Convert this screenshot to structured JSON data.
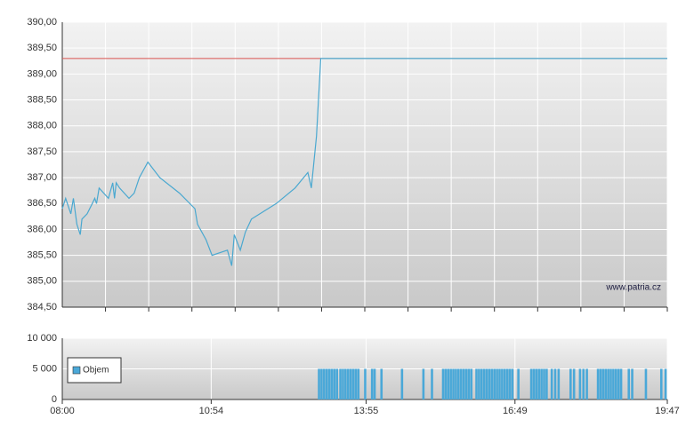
{
  "chart_data": [
    {
      "type": "line",
      "x": [
        "08:00",
        "08:04",
        "08:10",
        "08:13",
        "08:17",
        "08:21",
        "08:23",
        "08:29",
        "08:35",
        "08:38",
        "08:40",
        "08:43",
        "08:54",
        "08:59",
        "09:01",
        "09:03",
        "09:07",
        "09:18",
        "09:24",
        "09:30",
        "09:40",
        "09:54",
        "10:17",
        "10:35",
        "10:38",
        "10:48",
        "10:55",
        "11:13",
        "11:18",
        "11:21",
        "11:28",
        "11:34",
        "11:41",
        "12:10",
        "12:32",
        "12:47",
        "12:51",
        "12:57",
        "13:02",
        "19:47"
      ],
      "values": [
        386.4,
        386.6,
        386.3,
        386.6,
        386.1,
        385.9,
        386.2,
        386.3,
        386.5,
        386.6,
        386.5,
        386.8,
        386.6,
        386.9,
        386.6,
        386.9,
        386.8,
        386.6,
        386.7,
        387.0,
        387.3,
        387.0,
        386.7,
        386.4,
        386.1,
        385.8,
        385.5,
        385.6,
        385.3,
        385.9,
        385.6,
        385.95,
        386.2,
        386.5,
        386.8,
        387.1,
        386.8,
        387.8,
        389.3,
        389.3
      ],
      "color": "#4aa8d0",
      "reference_line": {
        "value": 389.3,
        "color": "#d9534f"
      },
      "xlim": [
        "08:00",
        "19:47"
      ],
      "ylim": [
        384.5,
        390
      ],
      "yticks": [
        {
          "value": 384.5,
          "label": "384,50"
        },
        {
          "value": 385,
          "label": "385,00"
        },
        {
          "value": 385.5,
          "label": "385,50"
        },
        {
          "value": 386,
          "label": "386,00"
        },
        {
          "value": 386.5,
          "label": "386,50"
        },
        {
          "value": 387,
          "label": "387,00"
        },
        {
          "value": 387.5,
          "label": "387,50"
        },
        {
          "value": 388,
          "label": "388,00"
        },
        {
          "value": 388.5,
          "label": "388,50"
        },
        {
          "value": 389,
          "label": "389,00"
        },
        {
          "value": 389.5,
          "label": "389,50"
        },
        {
          "value": 390,
          "label": "390,00"
        }
      ],
      "annotation": "www.patria.cz",
      "grid": true
    },
    {
      "type": "bar",
      "x": [
        "13:00",
        "13:03",
        "13:06",
        "13:09",
        "13:12",
        "13:15",
        "13:18",
        "13:21",
        "13:25",
        "13:28",
        "13:31",
        "13:34",
        "13:37",
        "13:40",
        "13:43",
        "13:46",
        "13:54",
        "14:02",
        "14:05",
        "14:13",
        "14:37",
        "15:02",
        "15:12",
        "15:25",
        "15:28",
        "15:31",
        "15:34",
        "15:37",
        "15:40",
        "15:43",
        "15:46",
        "15:49",
        "15:52",
        "15:55",
        "15:58",
        "16:04",
        "16:07",
        "16:10",
        "16:13",
        "16:16",
        "16:19",
        "16:22",
        "16:25",
        "16:28",
        "16:31",
        "16:34",
        "16:37",
        "16:40",
        "16:43",
        "16:46",
        "16:53",
        "17:08",
        "17:11",
        "17:14",
        "17:17",
        "17:20",
        "17:23",
        "17:26",
        "17:32",
        "17:36",
        "17:40",
        "17:54",
        "17:58",
        "18:05",
        "18:09",
        "18:13",
        "18:26",
        "18:29",
        "18:32",
        "18:35",
        "18:38",
        "18:41",
        "18:44",
        "18:47",
        "18:50",
        "18:53",
        "19:02",
        "19:06",
        "19:22",
        "19:40",
        "19:45"
      ],
      "series": [
        {
          "name": "Objem",
          "color": "#4aa8d8",
          "values": [
            5000,
            5000,
            5000,
            5000,
            5000,
            5000,
            5000,
            5000,
            5000,
            5000,
            5000,
            5000,
            5000,
            5000,
            5000,
            5000,
            5000,
            5000,
            5000,
            5000,
            5000,
            5000,
            5000,
            5000,
            5000,
            5000,
            5000,
            5000,
            5000,
            5000,
            5000,
            5000,
            5000,
            5000,
            5000,
            5000,
            5000,
            5000,
            5000,
            5000,
            5000,
            5000,
            5000,
            5000,
            5000,
            5000,
            5000,
            5000,
            5000,
            5000,
            5000,
            5000,
            5000,
            5000,
            5000,
            5000,
            5000,
            5000,
            5000,
            5000,
            5000,
            5000,
            5000,
            5000,
            5000,
            5000,
            5000,
            5000,
            5000,
            5000,
            5000,
            5000,
            5000,
            5000,
            5000,
            5000,
            5000,
            5000,
            5000,
            5000,
            5000
          ]
        }
      ],
      "xlim": [
        "08:00",
        "19:47"
      ],
      "xticks": [
        "08:00",
        "10:54",
        "13:55",
        "16:49",
        "19:47"
      ],
      "ylim": [
        0,
        10000
      ],
      "yticks": [
        0,
        {
          "value": 5000,
          "label": "5 000"
        },
        {
          "value": 10000,
          "label": "10 000"
        }
      ],
      "legend": "upper left",
      "grid": true
    }
  ]
}
